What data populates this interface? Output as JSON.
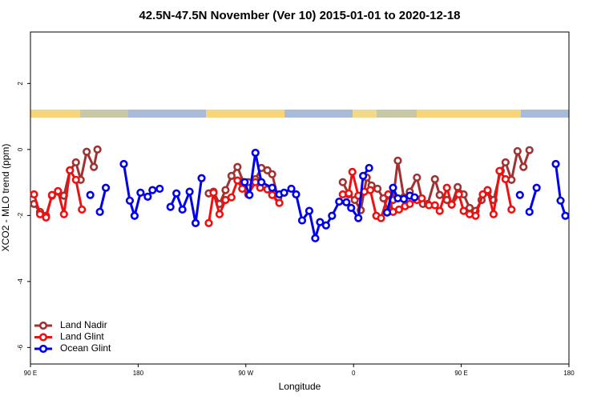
{
  "chart_data": {
    "type": "line",
    "title": "42.5N-47.5N November (Ver 10)   2015-01-01 to 2020-12-18",
    "x_label": "Longitude",
    "y_label": "XCO2 - MLO trend (ppm)",
    "xlim": [
      90,
      540
    ],
    "xticks": [
      {
        "value": 90,
        "label": "90 E"
      },
      {
        "value": 180,
        "label": "180"
      },
      {
        "value": 270,
        "label": "90 W"
      },
      {
        "value": 360,
        "label": "0"
      },
      {
        "value": 450,
        "label": "90 E"
      },
      {
        "value": 540,
        "label": "180"
      }
    ],
    "ylim": [
      -6.5,
      3.56
    ],
    "yticks": [
      2,
      0,
      -2,
      -4,
      -6
    ],
    "legend": "bottom-left",
    "series": [
      {
        "name": "Land Nadir",
        "color": "#a03232",
        "x": [
          93,
          98,
          103,
          108,
          113,
          118,
          123,
          128,
          132,
          137,
          143,
          146,
          null,
          239,
          243,
          248,
          253,
          258,
          263,
          268,
          272,
          278,
          283,
          288,
          292,
          297,
          null,
          351,
          356,
          361,
          366,
          371,
          375,
          380,
          385,
          389,
          393,
          397,
          402,
          407,
          413,
          418,
          422,
          428,
          432,
          438,
          442,
          447,
          452,
          457,
          462,
          467,
          472,
          477,
          483,
          487,
          492,
          497,
          502,
          507
        ],
        "values": [
          -1.65,
          -1.89,
          -2.01,
          -1.4,
          -1.28,
          -1.4,
          -0.63,
          -0.39,
          -0.92,
          -0.07,
          -0.53,
          0,
          null,
          -1.33,
          -1.28,
          -1.65,
          -1.23,
          -0.8,
          -0.53,
          -0.99,
          -0.99,
          -0.9,
          -0.56,
          -0.63,
          -0.75,
          -1.48,
          null,
          -0.99,
          -1.36,
          -1.53,
          -1.84,
          -0.85,
          -1.09,
          -1.19,
          -1.48,
          -1.89,
          -1.53,
          -0.34,
          -1.45,
          -1.28,
          -0.85,
          -1.65,
          -1.65,
          -0.9,
          -1.38,
          -1.53,
          -1.67,
          -1.14,
          -1.36,
          -1.77,
          -1.86,
          -1.53,
          -1.28,
          -1.53,
          -0.65,
          -0.39,
          -0.92,
          -0.05,
          -0.53,
          -0.02
        ]
      },
      {
        "name": "Land Glint",
        "color": "#ee1111",
        "x": [
          93,
          98,
          103,
          108,
          113,
          118,
          123,
          128,
          133,
          null,
          239,
          243,
          248,
          253,
          258,
          263,
          267,
          272,
          278,
          282,
          288,
          292,
          298,
          null,
          351,
          356,
          359,
          364,
          369,
          374,
          379,
          383,
          389,
          393,
          398,
          403,
          407,
          413,
          417,
          423,
          428,
          432,
          438,
          442,
          448,
          452,
          457,
          462,
          468,
          472,
          477,
          482,
          487,
          492
        ],
        "values": [
          -1.36,
          -1.96,
          -2.06,
          -1.38,
          -1.26,
          -1.96,
          -0.63,
          -0.92,
          -1.82,
          null,
          -2.23,
          -1.31,
          -1.96,
          -1.53,
          -1.45,
          -0.94,
          -1.19,
          -1.36,
          -0.99,
          -1.16,
          -1.21,
          -1.38,
          -1.62,
          null,
          -1.36,
          -1.33,
          -0.68,
          -1.4,
          -1.28,
          -1.23,
          -2.01,
          -2.08,
          -1.36,
          -1.89,
          -1.82,
          -1.72,
          -1.65,
          -1.53,
          -1.48,
          -1.69,
          -1.69,
          -1.86,
          -1.16,
          -1.67,
          -1.36,
          -1.86,
          -1.96,
          -2.01,
          -1.36,
          -1.23,
          -1.96,
          -0.65,
          -0.9,
          -1.82
        ]
      },
      {
        "name": "Ocean Glint",
        "color": "#0000ee",
        "x": [
          140,
          null,
          148,
          153,
          null,
          168,
          173,
          177,
          182,
          188,
          192,
          198,
          null,
          207,
          212,
          217,
          223,
          228,
          233,
          null,
          269,
          273,
          278,
          283,
          292,
          298,
          302,
          308,
          312,
          317,
          323,
          328,
          332,
          337,
          342,
          348,
          354,
          358,
          364,
          368,
          373,
          null,
          388,
          393,
          397,
          402,
          407,
          411,
          null,
          499,
          null,
          507,
          513,
          null,
          529,
          533,
          537
        ],
        "values": [
          -1.38,
          null,
          -1.89,
          -1.16,
          null,
          -0.44,
          -1.55,
          -2.01,
          -1.31,
          -1.43,
          -1.23,
          -1.19,
          null,
          -1.74,
          -1.33,
          -1.82,
          -1.28,
          -2.23,
          -0.87,
          null,
          -0.99,
          -1.38,
          -0.1,
          -0.99,
          -1.16,
          -1.36,
          -1.31,
          -1.19,
          -1.36,
          -2.15,
          -1.86,
          -2.69,
          -2.2,
          -2.3,
          -2.01,
          -1.58,
          -1.6,
          -1.77,
          -2.08,
          -0.8,
          -0.56,
          null,
          -1.91,
          -1.16,
          -1.48,
          -1.5,
          -1.4,
          -1.45,
          null,
          -1.38,
          null,
          -1.89,
          -1.16,
          null,
          -0.44,
          -1.55,
          -2.01
        ]
      }
    ]
  }
}
